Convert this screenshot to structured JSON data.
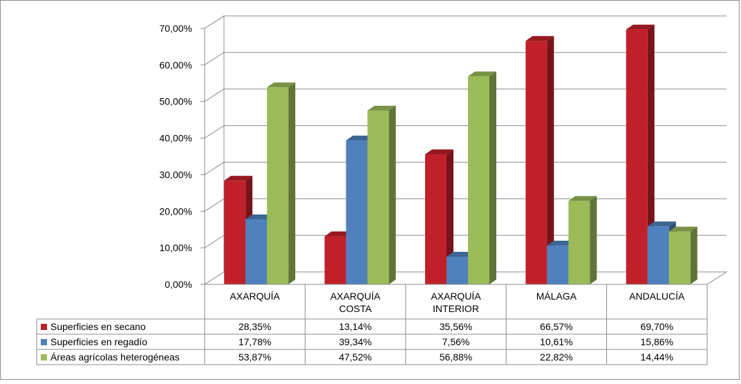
{
  "chart_data": {
    "type": "bar",
    "categories": [
      [
        "AXARQUÍA"
      ],
      [
        "AXARQUÍA",
        "COSTA"
      ],
      [
        "AXARQUÍA",
        "INTERIOR"
      ],
      [
        "MÁLAGA"
      ],
      [
        "ANDALUCÍA"
      ]
    ],
    "series": [
      {
        "name": "Superficies en secano",
        "values": [
          28.35,
          13.14,
          35.56,
          66.57,
          69.7
        ],
        "labels": [
          "28,35%",
          "13,14%",
          "35,56%",
          "66,57%",
          "69,70%"
        ],
        "color": "#c0202a"
      },
      {
        "name": "Superficies en regadío",
        "values": [
          17.78,
          39.34,
          7.56,
          10.61,
          15.86
        ],
        "labels": [
          "17,78%",
          "39,34%",
          "7,56%",
          "10,61%",
          "15,86%"
        ],
        "color": "#4f81bd"
      },
      {
        "name": "Áreas agrícolas heterogéneas",
        "values": [
          53.87,
          47.52,
          56.88,
          22.82,
          14.44
        ],
        "labels": [
          "53,87%",
          "47,52%",
          "56,88%",
          "22,82%",
          "14,44%"
        ],
        "color": "#9bbb59"
      }
    ],
    "ylim": [
      0,
      70
    ],
    "yticks": [
      "0,00%",
      "10,00%",
      "20,00%",
      "30,00%",
      "40,00%",
      "50,00%",
      "60,00%",
      "70,00%"
    ],
    "grid": true,
    "legend": "data-table",
    "style": "3d-clustered-column"
  }
}
